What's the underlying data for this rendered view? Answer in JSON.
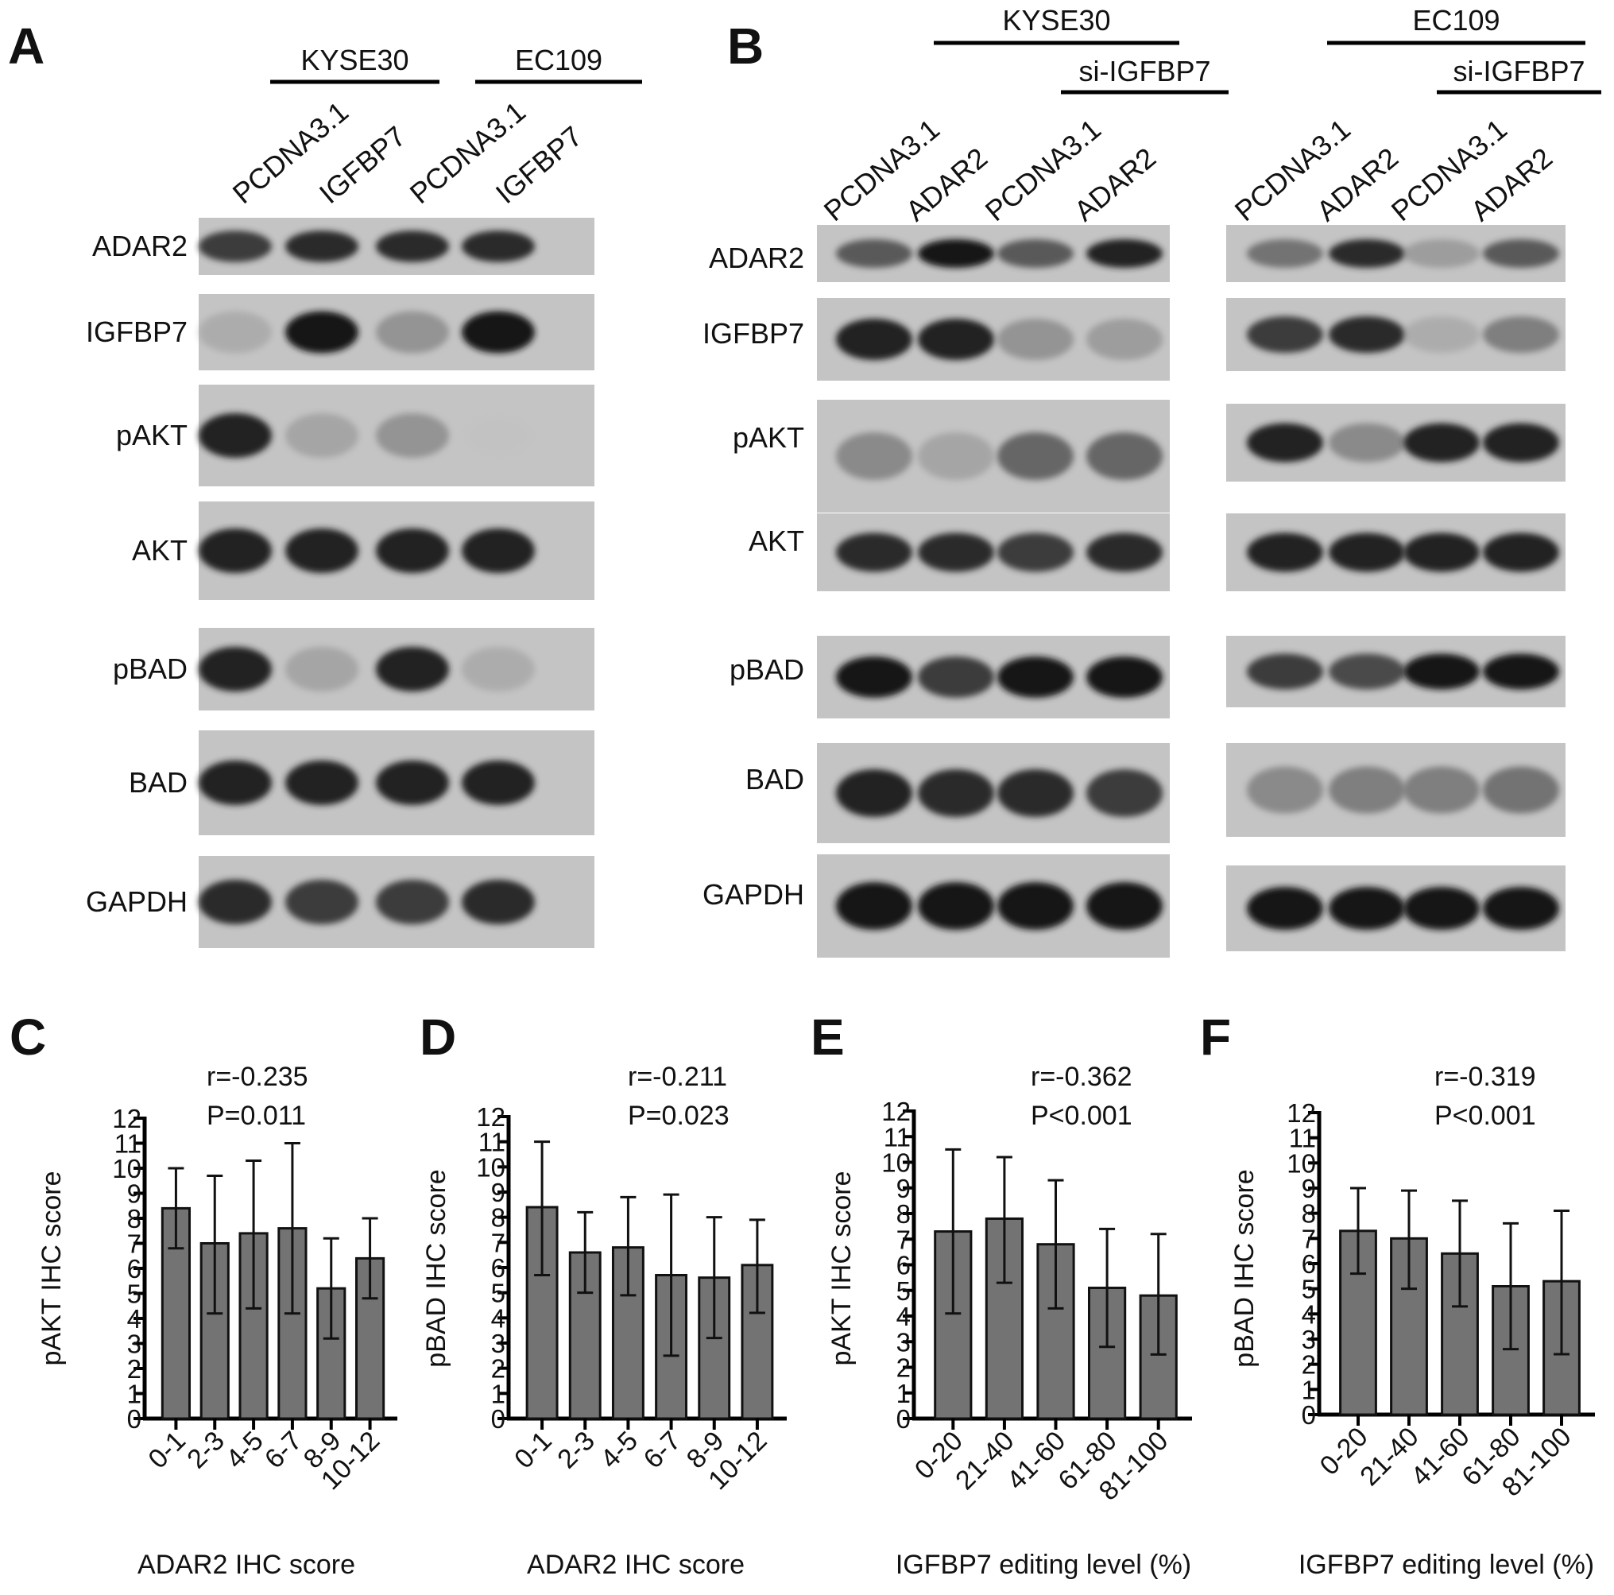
{
  "panels": {
    "A": "A",
    "B": "B",
    "C": "C",
    "D": "D",
    "E": "E",
    "F": "F"
  },
  "blots": {
    "A": {
      "groups": [
        {
          "label": "KYSE30",
          "lanes": [
            "PCDNA3.1",
            "IGFBP7"
          ]
        },
        {
          "label": "EC109",
          "lanes": [
            "PCDNA3.1",
            "IGFBP7"
          ]
        }
      ],
      "rows": [
        {
          "label": "ADAR2",
          "intensities": [
            0.8,
            0.85,
            0.85,
            0.85
          ]
        },
        {
          "label": "IGFBP7",
          "intensities": [
            0.3,
            0.95,
            0.45,
            0.95
          ]
        },
        {
          "label": "pAKT",
          "intensities": [
            0.9,
            0.35,
            0.45,
            0.05
          ]
        },
        {
          "label": "AKT",
          "intensities": [
            0.9,
            0.9,
            0.9,
            0.9
          ]
        },
        {
          "label": "pBAD",
          "intensities": [
            0.9,
            0.35,
            0.9,
            0.3
          ]
        },
        {
          "label": "BAD",
          "intensities": [
            0.9,
            0.9,
            0.9,
            0.9
          ]
        },
        {
          "label": "GAPDH",
          "intensities": [
            0.85,
            0.8,
            0.8,
            0.85
          ]
        }
      ]
    },
    "B": {
      "blocks": [
        {
          "label": "KYSE30",
          "sub_label": "si-IGFBP7",
          "lanes": [
            "PCDNA3.1",
            "ADAR2",
            "PCDNA3.1",
            "ADAR2"
          ]
        },
        {
          "label": "EC109",
          "sub_label": "si-IGFBP7",
          "lanes": [
            "PCDNA3.1",
            "ADAR2",
            "PCDNA3.1",
            "ADAR2"
          ]
        }
      ],
      "rows": [
        {
          "label": "ADAR2",
          "intensities": [
            [
              0.7,
              0.95,
              0.7,
              0.9
            ],
            [
              0.6,
              0.85,
              0.4,
              0.7
            ]
          ]
        },
        {
          "label": "IGFBP7",
          "intensities": [
            [
              0.9,
              0.9,
              0.45,
              0.4
            ],
            [
              0.8,
              0.85,
              0.3,
              0.55
            ]
          ]
        },
        {
          "label": "pAKT",
          "intensities": [
            [
              0.5,
              0.35,
              0.65,
              0.65
            ],
            [
              0.9,
              0.5,
              0.9,
              0.9
            ]
          ]
        },
        {
          "label": "AKT",
          "intensities": [
            [
              0.85,
              0.85,
              0.8,
              0.85
            ],
            [
              0.9,
              0.9,
              0.9,
              0.9
            ]
          ]
        },
        {
          "label": "pBAD",
          "intensities": [
            [
              0.95,
              0.8,
              0.95,
              0.95
            ],
            [
              0.8,
              0.75,
              0.95,
              0.95
            ]
          ]
        },
        {
          "label": "BAD",
          "intensities": [
            [
              0.9,
              0.85,
              0.85,
              0.8
            ],
            [
              0.5,
              0.55,
              0.55,
              0.6
            ]
          ]
        },
        {
          "label": "GAPDH",
          "intensities": [
            [
              0.98,
              0.98,
              0.98,
              0.98
            ],
            [
              0.95,
              0.95,
              0.95,
              0.95
            ]
          ]
        }
      ]
    }
  },
  "chart_data": [
    {
      "panel": "C",
      "type": "bar",
      "categories": [
        "0-1",
        "2-3",
        "4-5",
        "6-7",
        "8-9",
        "10-12"
      ],
      "values": [
        8.4,
        7.0,
        7.4,
        7.6,
        5.2,
        6.4
      ],
      "error_upper": [
        10.0,
        9.7,
        10.3,
        11.0,
        7.2,
        8.0
      ],
      "error_lower": [
        6.8,
        4.2,
        4.4,
        4.2,
        3.2,
        4.8
      ],
      "xlabel": "ADAR2 IHC score",
      "ylabel": "pAKT IHC score",
      "ylim": [
        0,
        12
      ],
      "yticks": [
        "0",
        "1",
        "2",
        "3",
        "4",
        "5",
        "6",
        "7",
        "8",
        "9",
        "10",
        "11",
        "12"
      ],
      "annotation": [
        "r=-0.235",
        "P=0.011"
      ],
      "bar_color": "#737373"
    },
    {
      "panel": "D",
      "type": "bar",
      "categories": [
        "0-1",
        "2-3",
        "4-5",
        "6-7",
        "8-9",
        "10-12"
      ],
      "values": [
        8.4,
        6.6,
        6.8,
        5.7,
        5.6,
        6.1
      ],
      "error_upper": [
        11.0,
        8.2,
        8.8,
        8.9,
        8.0,
        7.9
      ],
      "error_lower": [
        5.7,
        5.0,
        4.9,
        2.5,
        3.2,
        4.2
      ],
      "xlabel": "ADAR2 IHC score",
      "ylabel": "pBAD IHC score",
      "ylim": [
        0,
        12
      ],
      "yticks": [
        "0",
        "1",
        "2",
        "3",
        "4",
        "5",
        "6",
        "7",
        "8",
        "9",
        "10",
        "11",
        "12"
      ],
      "annotation": [
        "r=-0.211",
        "P=0.023"
      ],
      "bar_color": "#737373"
    },
    {
      "panel": "E",
      "type": "bar",
      "categories": [
        "0-20",
        "21-40",
        "41-60",
        "61-80",
        "81-100"
      ],
      "values": [
        7.3,
        7.8,
        6.8,
        5.1,
        4.8
      ],
      "error_upper": [
        10.5,
        10.2,
        9.3,
        7.4,
        7.2
      ],
      "error_lower": [
        4.1,
        5.3,
        4.3,
        2.8,
        2.5
      ],
      "xlabel": "IGFBP7 editing level (%)",
      "ylabel": "pAKT IHC score",
      "ylim": [
        0,
        12
      ],
      "yticks": [
        "0",
        "1",
        "2",
        "3",
        "4",
        "5",
        "6",
        "7",
        "8",
        "9",
        "10",
        "11",
        "12"
      ],
      "annotation": [
        "r=-0.362",
        "P<0.001"
      ],
      "bar_color": "#737373"
    },
    {
      "panel": "F",
      "type": "bar",
      "categories": [
        "0-20",
        "21-40",
        "41-60",
        "61-80",
        "81-100"
      ],
      "values": [
        7.3,
        7.0,
        6.4,
        5.1,
        5.3
      ],
      "error_upper": [
        9.0,
        8.9,
        8.5,
        7.6,
        8.1
      ],
      "error_lower": [
        5.6,
        5.0,
        4.3,
        2.6,
        2.4
      ],
      "xlabel": "IGFBP7 editing level (%)",
      "ylabel": "pBAD IHC score",
      "ylim": [
        0,
        12
      ],
      "yticks": [
        "0",
        "1",
        "2",
        "3",
        "4",
        "5",
        "6",
        "7",
        "8",
        "9",
        "10",
        "11",
        "12"
      ],
      "annotation": [
        "r=-0.319",
        "P<0.001"
      ],
      "bar_color": "#737373"
    }
  ]
}
